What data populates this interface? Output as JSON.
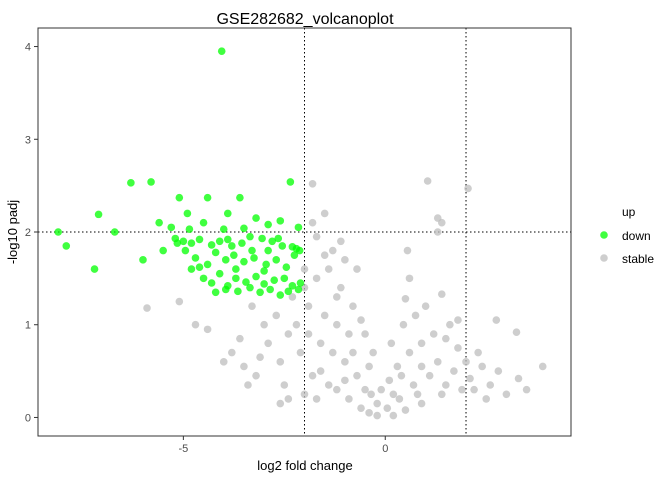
{
  "chart_data": {
    "type": "scatter",
    "title": "GSE282682_volcanoplot",
    "xlabel": "log2 fold change",
    "ylabel": "-log10 padj",
    "xlim": [
      -8.6,
      4.6
    ],
    "ylim": [
      -0.2,
      4.2
    ],
    "xticks": [
      -5,
      0
    ],
    "yticks": [
      0,
      1,
      2,
      3,
      4
    ],
    "grid": false,
    "thresholds": {
      "x": [
        -2,
        2
      ],
      "y": 2
    },
    "legend": {
      "title": "up",
      "position": "right"
    },
    "series": [
      {
        "name": "down",
        "color": "#00ff00",
        "points": [
          [
            -4.05,
            3.95
          ],
          [
            -6.3,
            2.53
          ],
          [
            -5.8,
            2.54
          ],
          [
            -2.35,
            2.54
          ],
          [
            -8.1,
            2.0
          ],
          [
            -7.9,
            1.85
          ],
          [
            -7.1,
            2.19
          ],
          [
            -6.7,
            2.0
          ],
          [
            -7.2,
            1.6
          ],
          [
            -6.0,
            1.7
          ],
          [
            -5.6,
            2.1
          ],
          [
            -5.3,
            2.05
          ],
          [
            -5.1,
            2.37
          ],
          [
            -4.9,
            2.2
          ],
          [
            -4.5,
            2.1
          ],
          [
            -3.9,
            2.2
          ],
          [
            -3.5,
            2.04
          ],
          [
            -3.2,
            2.15
          ],
          [
            -2.9,
            2.08
          ],
          [
            -2.6,
            2.12
          ],
          [
            -4.4,
            2.37
          ],
          [
            -3.6,
            2.37
          ],
          [
            -5.5,
            1.8
          ],
          [
            -5.2,
            1.93
          ],
          [
            -5.0,
            1.9
          ],
          [
            -4.8,
            1.88
          ],
          [
            -4.6,
            1.92
          ],
          [
            -4.3,
            1.86
          ],
          [
            -4.1,
            1.9
          ],
          [
            -3.8,
            1.85
          ],
          [
            -3.55,
            1.88
          ],
          [
            -3.3,
            1.8
          ],
          [
            -3.05,
            1.93
          ],
          [
            -2.8,
            1.9
          ],
          [
            -2.55,
            1.85
          ],
          [
            -2.3,
            1.84
          ],
          [
            -2.2,
            1.82
          ],
          [
            -2.12,
            1.8
          ],
          [
            -4.95,
            1.8
          ],
          [
            -4.7,
            1.72
          ],
          [
            -4.4,
            1.65
          ],
          [
            -4.2,
            1.78
          ],
          [
            -3.95,
            1.7
          ],
          [
            -3.75,
            1.75
          ],
          [
            -3.5,
            1.68
          ],
          [
            -3.25,
            1.72
          ],
          [
            -2.95,
            1.65
          ],
          [
            -2.7,
            1.7
          ],
          [
            -2.45,
            1.62
          ],
          [
            -2.25,
            1.75
          ],
          [
            -4.5,
            1.5
          ],
          [
            -4.3,
            1.45
          ],
          [
            -4.1,
            1.55
          ],
          [
            -3.9,
            1.42
          ],
          [
            -3.7,
            1.5
          ],
          [
            -3.45,
            1.46
          ],
          [
            -3.2,
            1.52
          ],
          [
            -3.0,
            1.44
          ],
          [
            -2.75,
            1.48
          ],
          [
            -2.5,
            1.5
          ],
          [
            -2.3,
            1.42
          ],
          [
            -2.1,
            1.45
          ],
          [
            -4.2,
            1.35
          ],
          [
            -3.95,
            1.38
          ],
          [
            -3.65,
            1.36
          ],
          [
            -3.35,
            1.4
          ],
          [
            -3.1,
            1.35
          ],
          [
            -2.85,
            1.38
          ],
          [
            -2.6,
            1.32
          ],
          [
            -2.4,
            1.36
          ],
          [
            -2.15,
            1.38
          ],
          [
            -4.6,
            1.62
          ],
          [
            -3.0,
            1.58
          ],
          [
            -2.65,
            1.93
          ],
          [
            -3.9,
            1.92
          ],
          [
            -5.15,
            1.88
          ],
          [
            -4.85,
            2.03
          ],
          [
            -4.0,
            2.03
          ],
          [
            -2.15,
            2.05
          ],
          [
            -3.35,
            1.95
          ],
          [
            -3.7,
            1.6
          ],
          [
            -2.9,
            1.8
          ],
          [
            -4.8,
            1.6
          ]
        ]
      },
      {
        "name": "stable",
        "color": "#bebebe",
        "points": [
          [
            1.05,
            2.55
          ],
          [
            2.05,
            2.47
          ],
          [
            -1.8,
            2.52
          ],
          [
            1.4,
            2.1
          ],
          [
            1.3,
            2.0
          ],
          [
            1.3,
            2.15
          ],
          [
            0.55,
            1.8
          ],
          [
            0.6,
            1.5
          ],
          [
            1.4,
            1.33
          ],
          [
            0.5,
            1.28
          ],
          [
            1.8,
            1.05
          ],
          [
            2.75,
            1.05
          ],
          [
            3.25,
            0.92
          ],
          [
            3.9,
            0.55
          ],
          [
            3.3,
            0.42
          ],
          [
            2.6,
            0.35
          ],
          [
            -1.5,
            2.2
          ],
          [
            -1.8,
            2.1
          ],
          [
            -1.7,
            1.95
          ],
          [
            -1.3,
            1.8
          ],
          [
            -1.0,
            1.7
          ],
          [
            -5.9,
            1.18
          ],
          [
            -5.1,
            1.25
          ],
          [
            -4.7,
            1.0
          ],
          [
            -4.4,
            0.95
          ],
          [
            -3.5,
            0.55
          ],
          [
            -3.2,
            0.45
          ],
          [
            -3.8,
            0.7
          ],
          [
            -2.5,
            0.35
          ],
          [
            -2.4,
            0.2
          ],
          [
            -1.6,
            0.5
          ],
          [
            -1.2,
            0.3
          ],
          [
            -0.9,
            0.2
          ],
          [
            -0.6,
            0.1
          ],
          [
            -0.4,
            0.05
          ],
          [
            -0.2,
            0.02
          ],
          [
            0.2,
            0.02
          ],
          [
            0.5,
            0.08
          ],
          [
            0.9,
            0.15
          ],
          [
            1.4,
            0.25
          ],
          [
            2.2,
            0.3
          ],
          [
            -2.2,
            1.0
          ],
          [
            -1.9,
            0.9
          ],
          [
            -1.6,
            0.8
          ],
          [
            -1.3,
            0.7
          ],
          [
            -1.0,
            0.6
          ],
          [
            -0.7,
            0.45
          ],
          [
            -0.5,
            0.3
          ],
          [
            0.1,
            0.4
          ],
          [
            0.3,
            0.55
          ],
          [
            0.6,
            0.7
          ],
          [
            0.9,
            0.8
          ],
          [
            1.2,
            0.9
          ],
          [
            1.5,
            0.85
          ],
          [
            1.8,
            0.75
          ],
          [
            2.0,
            0.6
          ],
          [
            2.4,
            0.55
          ],
          [
            -2.9,
            0.8
          ],
          [
            -2.6,
            0.6
          ],
          [
            -3.1,
            0.65
          ],
          [
            -2.3,
            1.3
          ],
          [
            -2.0,
            1.4
          ],
          [
            -1.7,
            1.5
          ],
          [
            -1.4,
            1.6
          ],
          [
            -1.1,
            1.4
          ],
          [
            -0.8,
            1.2
          ],
          [
            -0.5,
            0.9
          ],
          [
            -0.3,
            0.7
          ],
          [
            0.15,
            0.8
          ],
          [
            0.45,
            1.0
          ],
          [
            0.75,
            1.1
          ],
          [
            1.0,
            1.2
          ],
          [
            1.6,
            1.0
          ],
          [
            2.3,
            0.7
          ],
          [
            2.8,
            0.5
          ],
          [
            3.5,
            0.3
          ],
          [
            -1.9,
            1.2
          ],
          [
            -1.5,
            1.1
          ],
          [
            -1.2,
            1.0
          ],
          [
            -0.9,
            0.9
          ],
          [
            -2.1,
            0.7
          ],
          [
            -1.8,
            0.45
          ],
          [
            -1.4,
            0.35
          ],
          [
            -1.0,
            0.4
          ],
          [
            0.2,
            0.25
          ],
          [
            0.7,
            0.35
          ],
          [
            1.1,
            0.45
          ],
          [
            1.7,
            0.5
          ],
          [
            2.1,
            0.42
          ],
          [
            -2.7,
            1.1
          ],
          [
            -3.3,
            1.2
          ],
          [
            -3.0,
            1.0
          ],
          [
            -2.4,
            0.9
          ],
          [
            -3.6,
            0.85
          ],
          [
            -4.0,
            0.6
          ],
          [
            -0.2,
            0.15
          ],
          [
            0.05,
            0.1
          ],
          [
            -0.1,
            0.3
          ],
          [
            0.35,
            0.2
          ],
          [
            -0.35,
            0.25
          ],
          [
            -1.1,
            1.9
          ],
          [
            -0.7,
            1.6
          ],
          [
            -1.5,
            1.75
          ],
          [
            -2.0,
            1.6
          ],
          [
            -1.2,
            1.3
          ],
          [
            0.9,
            0.55
          ],
          [
            1.3,
            0.6
          ],
          [
            1.9,
            0.3
          ],
          [
            2.5,
            0.2
          ],
          [
            3.0,
            0.25
          ],
          [
            -2.6,
            0.15
          ],
          [
            -2.0,
            0.25
          ],
          [
            -3.4,
            0.35
          ],
          [
            -1.7,
            0.2
          ],
          [
            -0.8,
            0.7
          ],
          [
            0.4,
            0.45
          ],
          [
            0.8,
            0.25
          ],
          [
            1.5,
            0.35
          ],
          [
            -0.6,
            1.05
          ],
          [
            -0.4,
            0.55
          ]
        ]
      }
    ]
  }
}
